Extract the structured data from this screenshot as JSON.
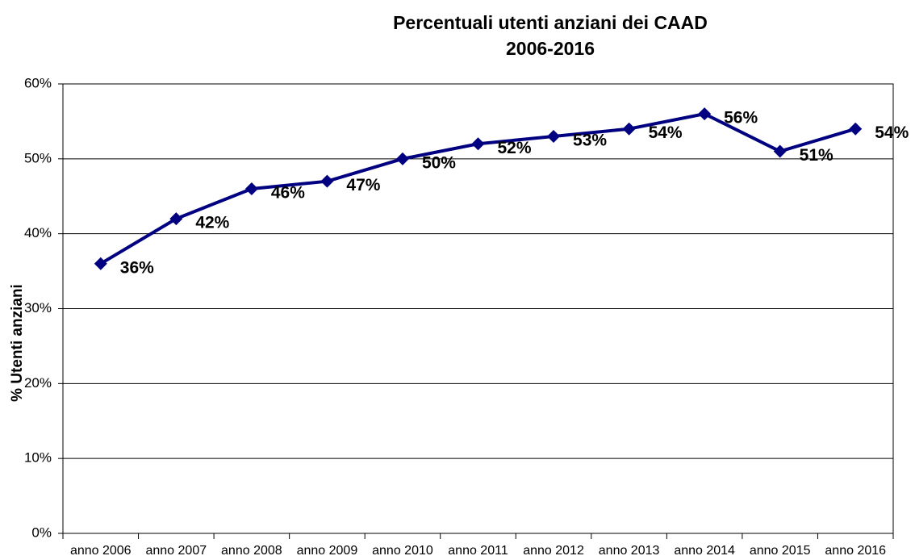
{
  "chart_data": {
    "type": "line",
    "title": [
      "Percentuali utenti anziani dei CAAD",
      "2006-2016"
    ],
    "y_label": "% Utenti anziani",
    "categories": [
      "anno 2006",
      "anno 2007",
      "anno 2008",
      "anno 2009",
      "anno 2010",
      "anno 2011",
      "anno 2012",
      "anno 2013",
      "anno 2014",
      "anno 2015",
      "anno 2016"
    ],
    "values": [
      36,
      42,
      46,
      47,
      50,
      52,
      53,
      54,
      56,
      51,
      54
    ],
    "value_labels": [
      "36%",
      "42%",
      "46%",
      "47%",
      "50%",
      "52%",
      "53%",
      "54%",
      "56%",
      "51%",
      "54%"
    ],
    "color": "#000080",
    "ylim": [
      0,
      60
    ],
    "yticks": [
      {
        "value": 0,
        "label": "0%"
      },
      {
        "value": 10,
        "label": "10%"
      },
      {
        "value": 20,
        "label": "20%"
      },
      {
        "value": 30,
        "label": "30%"
      },
      {
        "value": 40,
        "label": "40%"
      },
      {
        "value": 50,
        "label": "50%"
      },
      {
        "value": 60,
        "label": "60%"
      }
    ],
    "grid": true
  }
}
